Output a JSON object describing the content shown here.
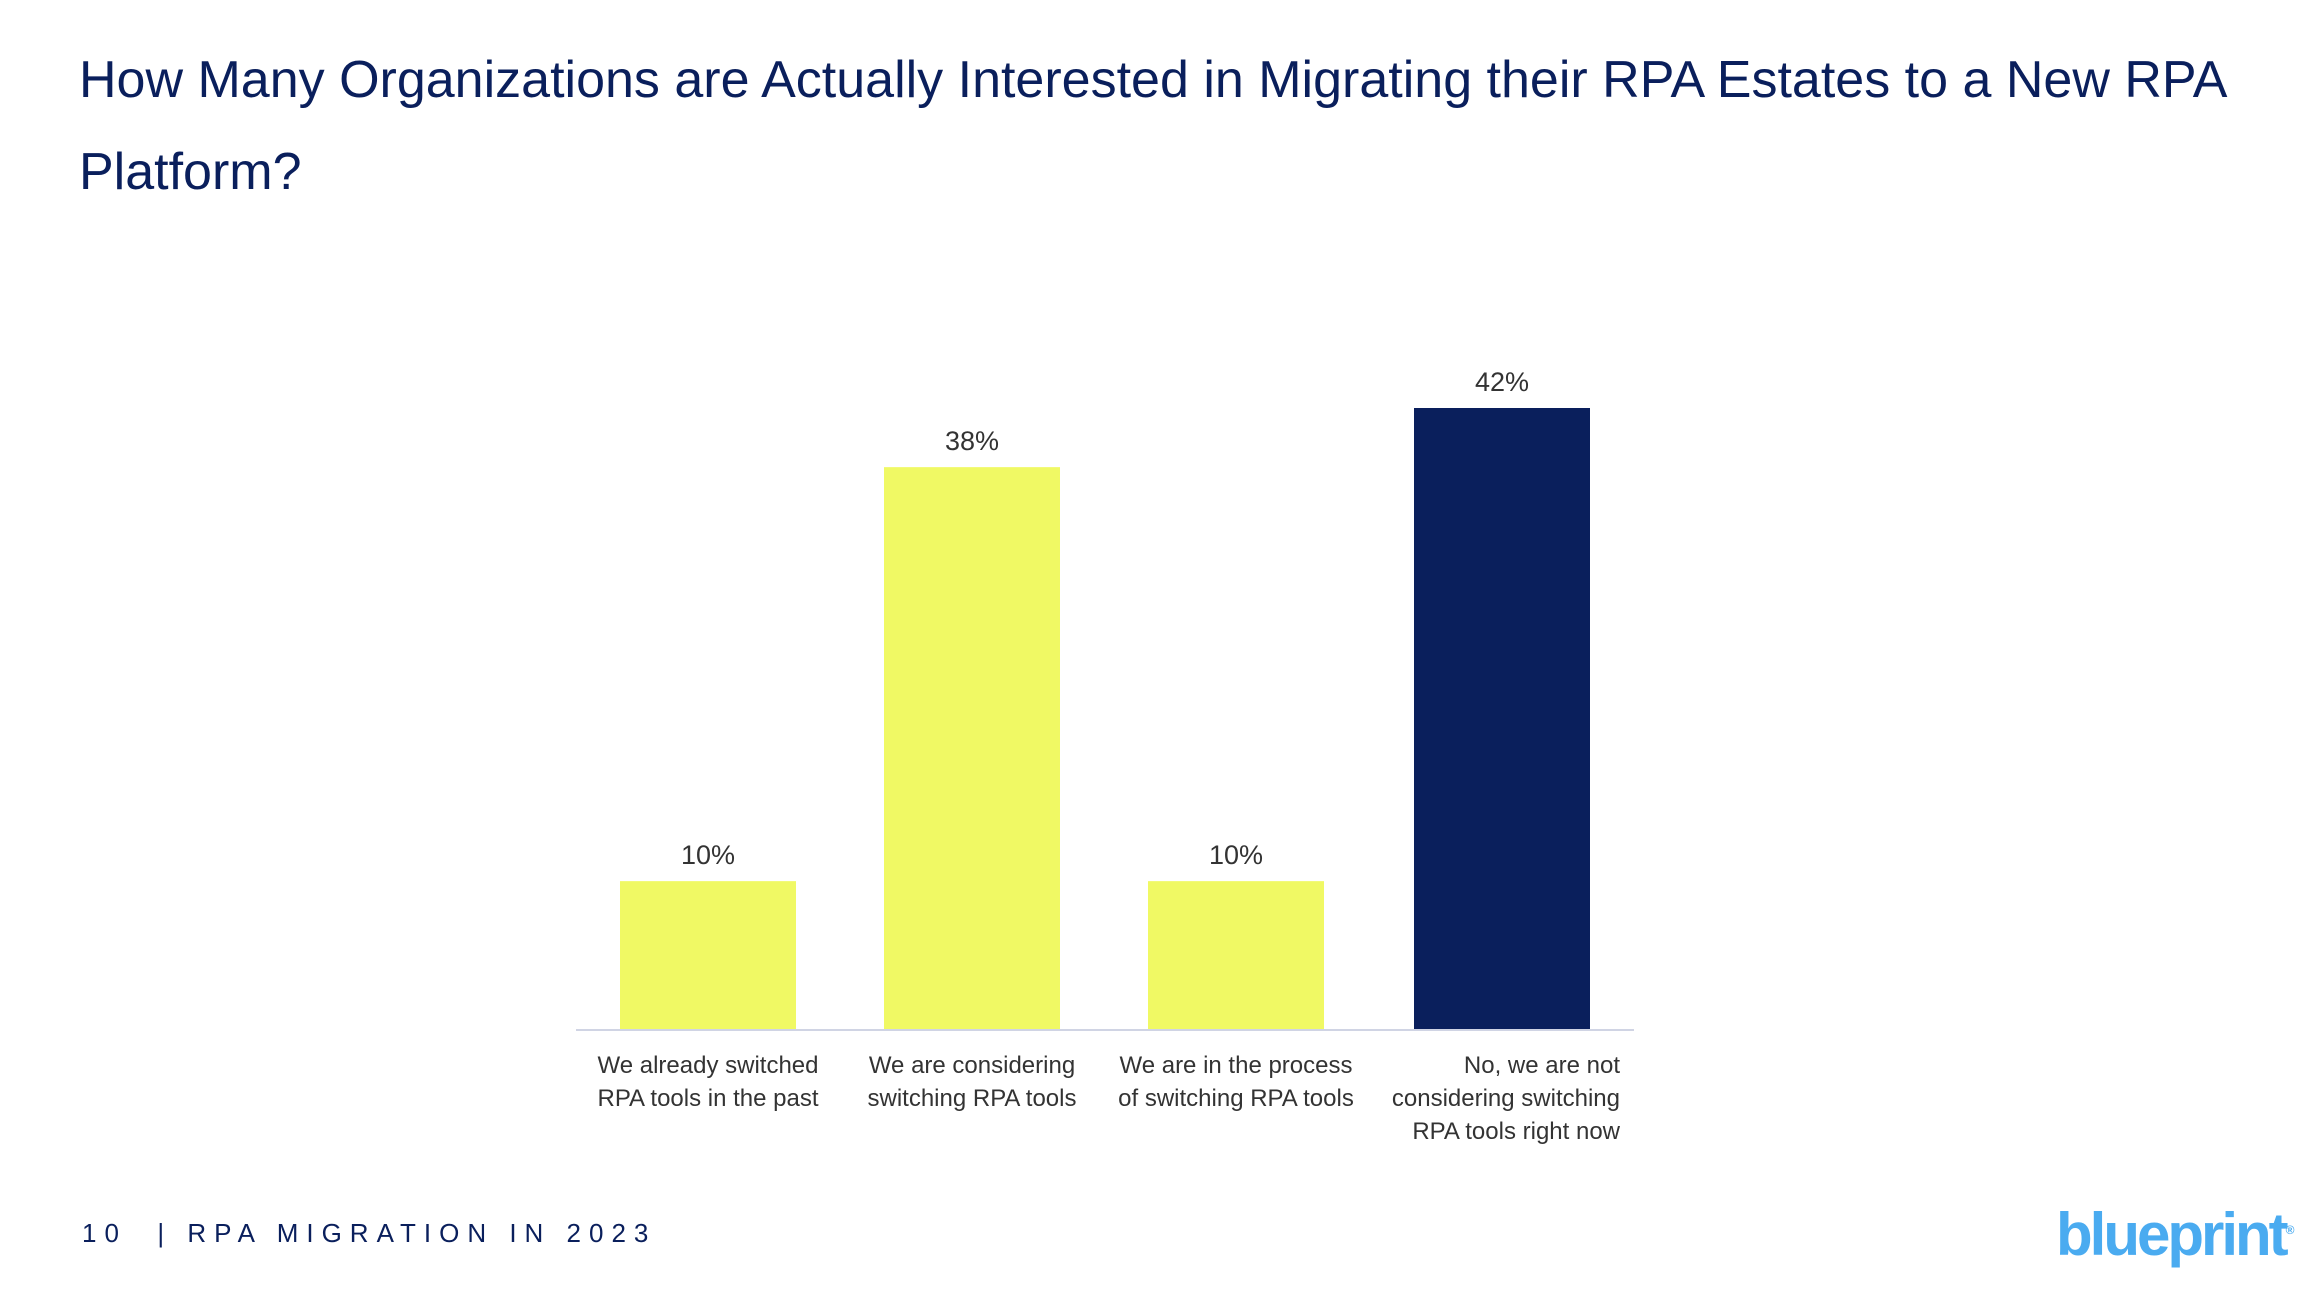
{
  "page": {
    "title": "How Many Organizations are Actually Interested in Migrating their RPA Estates to a New RPA Platform?",
    "footer_page": "10",
    "footer_separator": "|",
    "footer_text": "RPA MIGRATION IN 2023",
    "logo_text": "blueprint"
  },
  "colors": {
    "highlight": "#0a1f5c",
    "default_bar": "#f0f964",
    "axis": "#d0d4e4",
    "text": "#333333",
    "logo": "#4aabf0"
  },
  "chart_data": {
    "type": "bar",
    "categories": [
      [
        "We already switched",
        "RPA tools in the past"
      ],
      [
        "We are considering",
        "switching RPA tools"
      ],
      [
        "We are in the process",
        "of switching RPA tools"
      ],
      [
        "No, we are not",
        "considering switching",
        "RPA tools right now"
      ]
    ],
    "values": [
      10,
      38,
      10,
      42
    ],
    "data_labels": [
      "10%",
      "38%",
      "10%",
      "42%"
    ],
    "bar_colors": [
      "#f0f964",
      "#f0f964",
      "#f0f964",
      "#0a1f5c"
    ],
    "ylim": [
      0,
      42
    ],
    "grid": false,
    "title": "",
    "xlabel": "",
    "ylabel": ""
  }
}
